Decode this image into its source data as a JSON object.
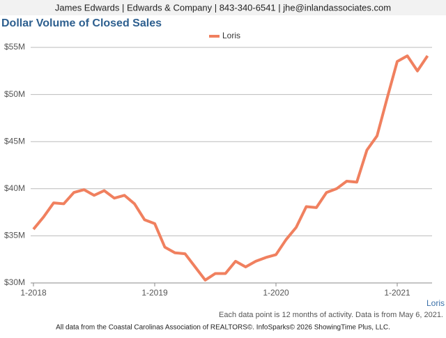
{
  "header": "James Edwards | Edwards & Company | 843-340-6541 | jhe@inlandassociates.com",
  "chart_data": {
    "type": "line",
    "title": "Dollar Volume of Closed Sales",
    "categories": [
      "1-2018",
      null,
      null,
      null,
      null,
      null,
      null,
      null,
      null,
      null,
      null,
      null,
      "1-2019",
      null,
      null,
      null,
      null,
      null,
      null,
      null,
      null,
      null,
      null,
      null,
      "1-2020",
      null,
      null,
      null,
      null,
      null,
      null,
      null,
      null,
      null,
      null,
      null,
      "1-2021",
      null,
      null,
      null
    ],
    "series": [
      {
        "name": "Loris",
        "color": "#f0805f",
        "values": [
          35.7,
          37.0,
          38.5,
          38.4,
          39.6,
          39.9,
          39.3,
          39.8,
          39.0,
          39.3,
          38.4,
          36.7,
          36.3,
          33.8,
          33.2,
          33.1,
          31.7,
          30.3,
          31.0,
          31.0,
          32.3,
          31.7,
          32.3,
          32.7,
          33.0,
          34.6,
          35.9,
          38.1,
          38.0,
          39.6,
          40.0,
          40.8,
          40.7,
          44.1,
          45.6,
          49.6,
          53.5,
          54.1,
          52.5,
          54.1
        ]
      }
    ],
    "ylim": [
      30,
      55
    ],
    "yticks": [
      {
        "value": 30,
        "label": "$30M"
      },
      {
        "value": 35,
        "label": "$35M"
      },
      {
        "value": 40,
        "label": "$40M"
      },
      {
        "value": 45,
        "label": "$45M"
      },
      {
        "value": 50,
        "label": "$50M"
      },
      {
        "value": 55,
        "label": "$55M"
      }
    ],
    "grid": true,
    "corner_label": "Loris"
  },
  "note": "Each data point is 12 months of activity. Data is from May 6, 2021.",
  "footer": "All data from the Coastal Carolinas Association of REALTORS©. InfoSparks© 2026 ShowingTime Plus, LLC."
}
